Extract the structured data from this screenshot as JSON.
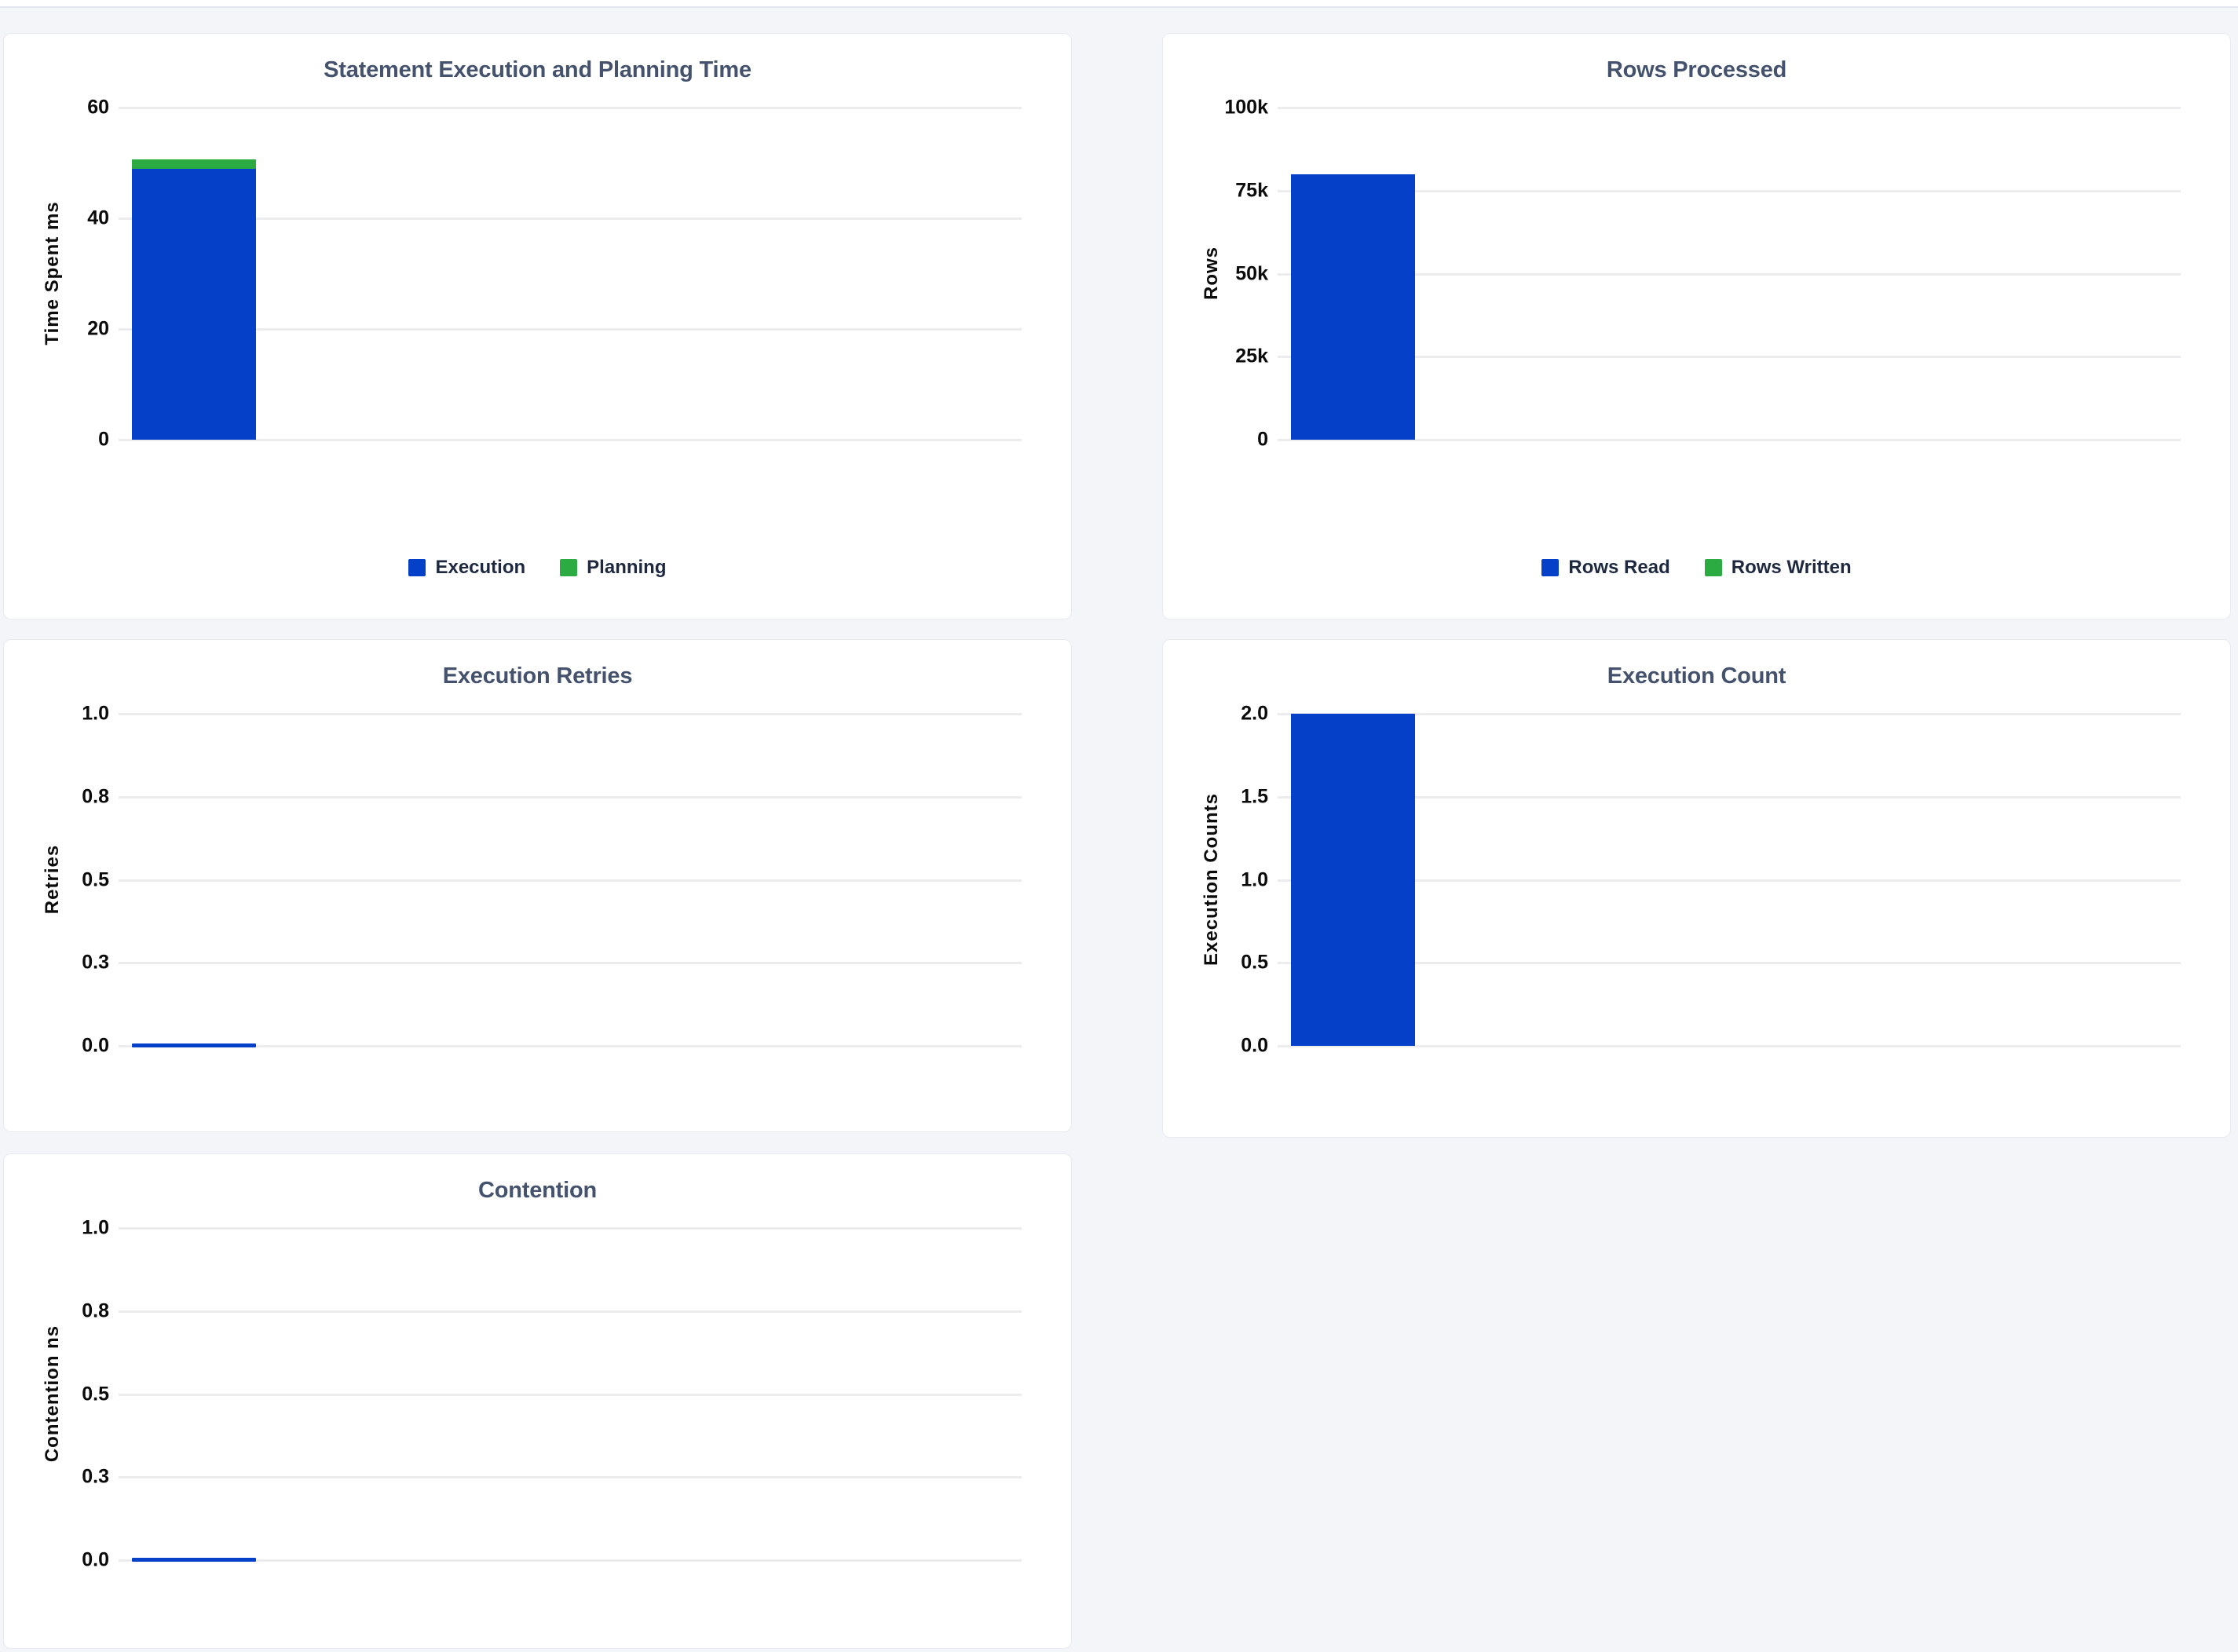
{
  "page": {
    "background": "#f4f5f9",
    "card_background": "#ffffff"
  },
  "theme": {
    "accent_blue": "#0441c8",
    "accent_green": "#2dab43",
    "title_color": "#44526d",
    "gridline_color": "#ececee"
  },
  "chart_data": [
    {
      "type": "bar",
      "title": "Statement Execution and Planning Time",
      "xlabel": "",
      "ylabel": "Time Spent ms",
      "ylim": [
        0,
        60
      ],
      "yticks": [
        60,
        40,
        20,
        0
      ],
      "ytick_labels": [
        "60",
        "40",
        "20",
        "0"
      ],
      "categories": [
        ""
      ],
      "stacked": true,
      "grid": true,
      "legend_position": "bottom",
      "series": [
        {
          "name": "Execution",
          "values": [
            49
          ],
          "color": "#0441c8"
        },
        {
          "name": "Planning",
          "values": [
            1.6
          ],
          "color": "#2dab43"
        }
      ],
      "legend": [
        {
          "label": "Execution",
          "color": "#0441c8"
        },
        {
          "label": "Planning",
          "color": "#2dab43"
        }
      ]
    },
    {
      "type": "bar",
      "title": "Rows Processed",
      "xlabel": "",
      "ylabel": "Rows",
      "ylim": [
        0,
        100000
      ],
      "yticks": [
        100000,
        75000,
        50000,
        25000,
        0
      ],
      "ytick_labels": [
        "100k",
        "75k",
        "50k",
        "25k",
        "0"
      ],
      "categories": [
        ""
      ],
      "stacked": true,
      "grid": true,
      "legend_position": "bottom",
      "series": [
        {
          "name": "Rows Read",
          "values": [
            80000
          ],
          "color": "#0441c8"
        },
        {
          "name": "Rows Written",
          "values": [
            0
          ],
          "color": "#2dab43"
        }
      ],
      "legend": [
        {
          "label": "Rows Read",
          "color": "#0441c8"
        },
        {
          "label": "Rows Written",
          "color": "#2dab43"
        }
      ]
    },
    {
      "type": "bar",
      "title": "Execution Retries",
      "xlabel": "",
      "ylabel": "Retries",
      "ylim": [
        0,
        1
      ],
      "yticks": [
        1,
        0.75,
        0.5,
        0.25,
        0
      ],
      "ytick_labels": [
        "1.0",
        "0.8",
        "0.5",
        "0.3",
        "0.0"
      ],
      "categories": [
        ""
      ],
      "stacked": false,
      "grid": true,
      "series": [
        {
          "name": "Retries",
          "values": [
            0
          ],
          "color": "#0441c8"
        }
      ]
    },
    {
      "type": "bar",
      "title": "Execution Count",
      "xlabel": "",
      "ylabel": "Execution Counts",
      "ylim": [
        0,
        2
      ],
      "yticks": [
        2,
        1.5,
        1,
        0.5,
        0
      ],
      "ytick_labels": [
        "2.0",
        "1.5",
        "1.0",
        "0.5",
        "0.0"
      ],
      "categories": [
        ""
      ],
      "stacked": false,
      "grid": true,
      "series": [
        {
          "name": "Execution Count",
          "values": [
            2
          ],
          "color": "#0441c8"
        }
      ]
    },
    {
      "type": "bar",
      "title": "Contention",
      "xlabel": "",
      "ylabel": "Contention ns",
      "ylim": [
        0,
        1
      ],
      "yticks": [
        1,
        0.75,
        0.5,
        0.25,
        0
      ],
      "ytick_labels": [
        "1.0",
        "0.8",
        "0.5",
        "0.3",
        "0.0"
      ],
      "categories": [
        ""
      ],
      "stacked": false,
      "grid": true,
      "series": [
        {
          "name": "Contention",
          "values": [
            0
          ],
          "color": "#0441c8"
        }
      ]
    }
  ]
}
